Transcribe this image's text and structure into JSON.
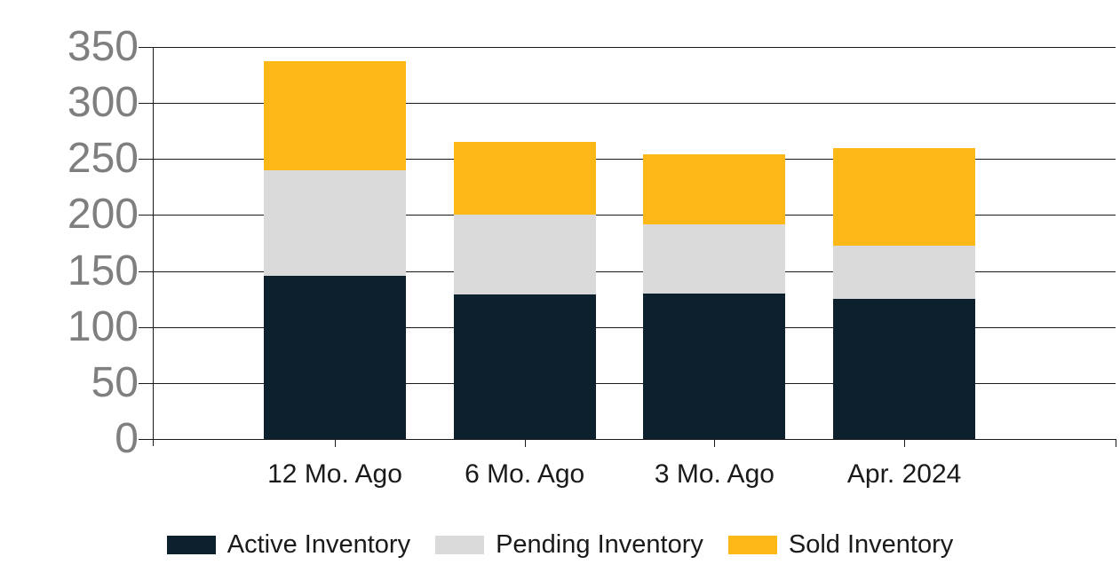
{
  "chart_data": {
    "type": "bar",
    "stacked": true,
    "title": "",
    "xlabel": "",
    "ylabel": "",
    "categories": [
      "12 Mo. Ago",
      "6 Mo. Ago",
      "3 Mo. Ago",
      "Apr. 2024"
    ],
    "series": [
      {
        "name": "Active Inventory",
        "color": "#0d202e",
        "values": [
          146,
          129,
          130,
          125
        ]
      },
      {
        "name": "Pending Inventory",
        "color": "#dadada",
        "values": [
          94,
          71,
          62,
          48
        ]
      },
      {
        "name": "Sold Inventory",
        "color": "#fbb817",
        "values": [
          97,
          65,
          62,
          87
        ]
      }
    ],
    "stack_totals": [
      337,
      265,
      254,
      260
    ],
    "ylim": [
      0,
      350
    ],
    "y_ticks": [
      0,
      50,
      100,
      150,
      200,
      250,
      300,
      350
    ],
    "grid": true,
    "legend_position": "bottom"
  },
  "colors": {
    "background": "#ffffff",
    "gridline": "#1a1a1a",
    "y_tick_label": "#7f7f7f",
    "x_tick_label": "#1a1a1a",
    "legend_text": "#1a1a1a"
  }
}
